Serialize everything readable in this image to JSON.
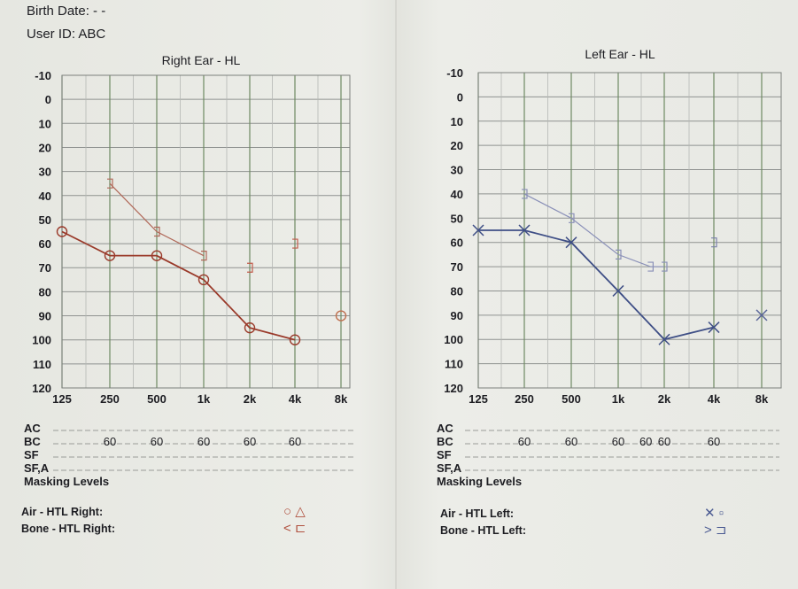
{
  "header": {
    "birth_date": "Birth Date: - -",
    "user_id": "User ID: ABC"
  },
  "chart_data": [
    {
      "type": "line",
      "title": "Right Ear - HL",
      "y_ticks": [
        "-10",
        "0",
        "10",
        "20",
        "30",
        "40",
        "50",
        "60",
        "70",
        "80",
        "90",
        "100",
        "110",
        "120"
      ],
      "ylim": [
        -10,
        120
      ],
      "y_inverted": true,
      "categories": [
        "125",
        "250",
        "500",
        "1k",
        "2k",
        "4k",
        "8k"
      ],
      "grid": true,
      "series": [
        {
          "name": "Air - HTL Right",
          "color": "#9a3a2a",
          "symbol": "circle",
          "x": [
            0,
            1,
            2,
            3,
            4,
            5
          ],
          "values": [
            55,
            65,
            65,
            75,
            95,
            100
          ]
        },
        {
          "name": "Bone - HTL Right",
          "color": "#b06858",
          "symbol": "bracket",
          "x": [
            1,
            2,
            3
          ],
          "values": [
            35,
            55,
            65
          ]
        },
        {
          "name": "Bone unconnected",
          "color": "#c05a4a",
          "symbol": "bracket",
          "x": [
            4,
            5
          ],
          "values": [
            70,
            60
          ]
        },
        {
          "name": "Air unconnected",
          "color": "#c07050",
          "symbol": "circle",
          "x": [
            6
          ],
          "values": [
            90
          ]
        }
      ],
      "masking": {
        "rows": [
          "AC",
          "BC",
          "SF",
          "SF,A"
        ],
        "label": "Masking Levels",
        "bc_values": [
          {
            "x": 1,
            "text": "60"
          },
          {
            "x": 2,
            "text": "60"
          },
          {
            "x": 3,
            "text": "60"
          },
          {
            "x": 4,
            "text": "60"
          },
          {
            "x": 5,
            "text": "60"
          }
        ]
      },
      "legend": [
        {
          "text": "Air - HTL Right:",
          "symbols": "○ △"
        },
        {
          "text": "Bone - HTL Right:",
          "symbols": "< ⊏"
        }
      ]
    },
    {
      "type": "line",
      "title": "Left Ear - HL",
      "y_ticks": [
        "-10",
        "0",
        "10",
        "20",
        "30",
        "40",
        "50",
        "60",
        "70",
        "80",
        "90",
        "100",
        "110",
        "120"
      ],
      "ylim": [
        -10,
        120
      ],
      "y_inverted": true,
      "categories": [
        "125",
        "250",
        "500",
        "1k",
        "2k",
        "4k",
        "8k"
      ],
      "grid": true,
      "series": [
        {
          "name": "Air - HTL Left",
          "color": "#3f4f86",
          "symbol": "x",
          "x": [
            0,
            1,
            2,
            3,
            4,
            5
          ],
          "values": [
            55,
            55,
            60,
            80,
            100,
            95
          ]
        },
        {
          "name": "Bone - HTL Left",
          "color": "#8a90b8",
          "symbol": "bracket",
          "x": [
            1,
            2,
            3,
            3.7,
            4
          ],
          "values": [
            40,
            50,
            65,
            70,
            70
          ]
        },
        {
          "name": "Bone unconnected",
          "color": "#7a80aa",
          "symbol": "bracket",
          "x": [
            5
          ],
          "values": [
            60
          ]
        },
        {
          "name": "Air unconnected",
          "color": "#5a6699",
          "symbol": "x",
          "x": [
            6
          ],
          "values": [
            90
          ]
        }
      ],
      "masking": {
        "rows": [
          "AC",
          "BC",
          "SF",
          "SF,A"
        ],
        "label": "Masking Levels",
        "bc_values": [
          {
            "x": 1,
            "text": "60"
          },
          {
            "x": 2,
            "text": "60"
          },
          {
            "x": 3,
            "text": "60"
          },
          {
            "x": 3.6,
            "text": "60"
          },
          {
            "x": 4,
            "text": "60"
          },
          {
            "x": 5,
            "text": "60"
          }
        ]
      },
      "legend": [
        {
          "text": "Air - HTL Left:",
          "symbols": "✕ ▫"
        },
        {
          "text": "Bone - HTL Left:",
          "symbols": "> ⊐"
        }
      ]
    }
  ]
}
